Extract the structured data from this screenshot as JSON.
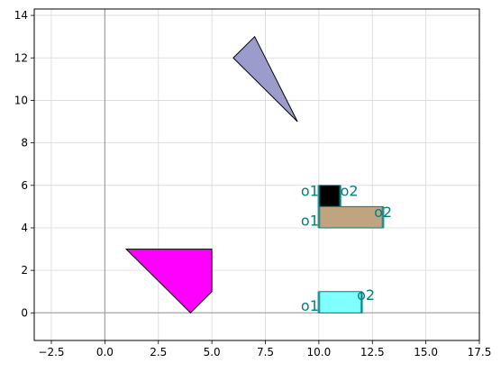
{
  "chart_data": {
    "type": "diagram",
    "title": "",
    "xlabel": "",
    "ylabel": "",
    "xlim": [
      -3.3,
      17.5
    ],
    "ylim": [
      -1.3,
      14.3
    ],
    "x_ticks": [
      -2.5,
      0.0,
      2.5,
      5.0,
      7.5,
      10.0,
      12.5,
      15.0,
      17.5
    ],
    "x_tick_labels": [
      "−2.5",
      "0.0",
      "2.5",
      "5.0",
      "7.5",
      "10.0",
      "12.5",
      "15.0",
      "17.5"
    ],
    "y_ticks": [
      0,
      2,
      4,
      6,
      8,
      10,
      12,
      14
    ],
    "y_tick_labels": [
      "0",
      "2",
      "4",
      "6",
      "8",
      "10",
      "12",
      "14"
    ],
    "grid": true,
    "annotation_color": "#008080",
    "shapes": [
      {
        "name": "triangle",
        "points": [
          [
            6,
            12
          ],
          [
            7,
            13
          ],
          [
            9,
            9
          ]
        ],
        "fill": "#9c9ccc",
        "stroke": "#000000"
      },
      {
        "name": "magenta-polygon",
        "points": [
          [
            1,
            3
          ],
          [
            5,
            3
          ],
          [
            5,
            1
          ],
          [
            4,
            0
          ]
        ],
        "fill": "#ff00ff",
        "stroke": "#000000"
      },
      {
        "name": "black-rect",
        "points": [
          [
            10,
            5
          ],
          [
            11,
            5
          ],
          [
            11,
            6
          ],
          [
            10,
            6
          ]
        ],
        "fill": "#000000",
        "stroke": "#008080"
      },
      {
        "name": "tan-rect",
        "points": [
          [
            10,
            4
          ],
          [
            13,
            4
          ],
          [
            13,
            5
          ],
          [
            10,
            5
          ]
        ],
        "fill": "#c0a480",
        "stroke": "#008080"
      },
      {
        "name": "cyan-rect",
        "points": [
          [
            10,
            0
          ],
          [
            12,
            0
          ],
          [
            12,
            1
          ],
          [
            10,
            1
          ]
        ],
        "fill": "#80ffff",
        "stroke": "#008080"
      }
    ],
    "port_markers": [
      {
        "x": 10,
        "y0": 5,
        "y1": 6
      },
      {
        "x": 11,
        "y0": 5,
        "y1": 6
      },
      {
        "x": 10,
        "y0": 4,
        "y1": 5
      },
      {
        "x": 13,
        "y0": 4,
        "y1": 5
      },
      {
        "x": 10,
        "y0": 0,
        "y1": 1
      },
      {
        "x": 12,
        "y0": 0,
        "y1": 1
      }
    ],
    "labels": [
      {
        "text": "o1",
        "x": 10,
        "y": 5.5,
        "anchor": "end"
      },
      {
        "text": "o2",
        "x": 11,
        "y": 5.5,
        "anchor": "start"
      },
      {
        "text": "o1",
        "x": 10,
        "y": 4.1,
        "anchor": "end"
      },
      {
        "text": "o2",
        "x": 13,
        "y": 4.5,
        "anchor": "middle"
      },
      {
        "text": "o1",
        "x": 10,
        "y": 0.1,
        "anchor": "end"
      },
      {
        "text": "o2",
        "x": 12.2,
        "y": 0.6,
        "anchor": "middle"
      }
    ]
  }
}
